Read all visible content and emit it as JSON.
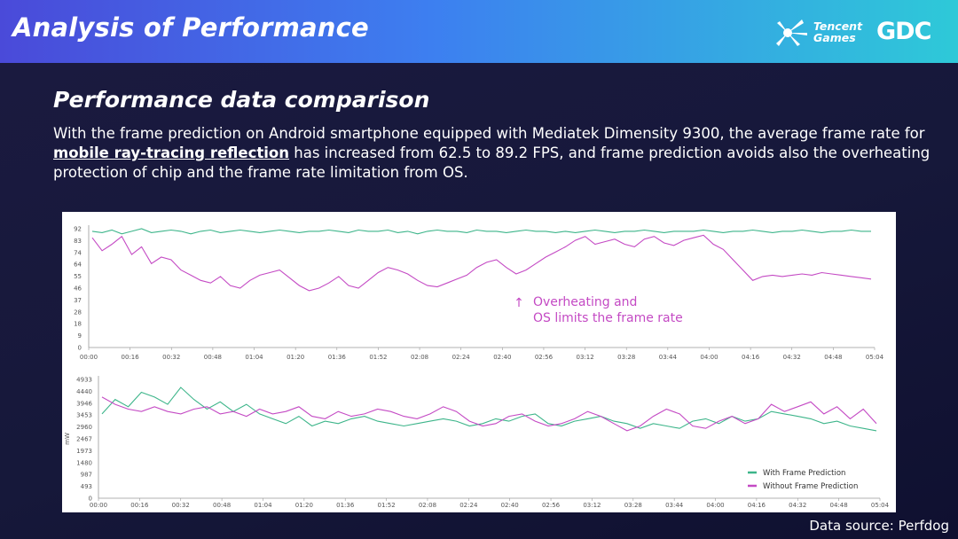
{
  "header": {
    "title": "Analysis of Performance",
    "logo_tencent": "Tencent Games",
    "logo_tencent_line1": "Tencent",
    "logo_tencent_line2": "Games",
    "logo_gdc": "GDC"
  },
  "section": {
    "title": "Performance data comparison",
    "text_before": "With the frame prediction on Android smartphone equipped with Mediatek Dimensity 9300, the average frame rate for ",
    "text_highlight": "mobile ray-tracing reflection",
    "text_after": " has increased from 62.5 to 89.2 FPS, and frame prediction avoids also the overheating protection of chip and the frame rate limitation from OS."
  },
  "source": "Data source: Perfdog",
  "colors": {
    "with_prediction": "#3db58a",
    "without_prediction": "#c44ac4",
    "header_start": "#4a4ad9",
    "header_end": "#2ec9d8"
  },
  "chart_data": [
    {
      "type": "line",
      "title": "",
      "xlabel": "",
      "ylabel": "",
      "ylim": [
        0,
        92
      ],
      "yticks": [
        "92",
        "83",
        "74",
        "64",
        "55",
        "46",
        "37",
        "28",
        "18",
        "9",
        "0"
      ],
      "xticks": [
        "00:00",
        "00:16",
        "00:32",
        "00:48",
        "01:04",
        "01:20",
        "01:36",
        "01:52",
        "02:08",
        "02:24",
        "02:40",
        "02:56",
        "03:12",
        "03:28",
        "03:44",
        "04:00",
        "04:16",
        "04:32",
        "04:48",
        "05:04"
      ],
      "annotation_line1": "Overheating and",
      "annotation_line2": "OS limits the frame rate",
      "annotation_arrow": "↑",
      "series": [
        {
          "name": "With Frame Prediction",
          "color": "#3db58a",
          "values": [
            90,
            89,
            91,
            88,
            90,
            92,
            89,
            90,
            91,
            90,
            88,
            90,
            91,
            89,
            90,
            91,
            90,
            89,
            90,
            91,
            90,
            89,
            90,
            90,
            91,
            90,
            89,
            91,
            90,
            90,
            91,
            89,
            90,
            88,
            90,
            91,
            90,
            90,
            89,
            91,
            90,
            90,
            89,
            90,
            91,
            90,
            90,
            89,
            90,
            89,
            90,
            91,
            90,
            89,
            90,
            90,
            91,
            90,
            89,
            90,
            90,
            90,
            91,
            90,
            89,
            90,
            90,
            91,
            90,
            89,
            90,
            90,
            91,
            90,
            89,
            90,
            90,
            91,
            90,
            90
          ]
        },
        {
          "values": [
            85,
            75,
            80,
            86,
            72,
            78,
            65,
            70,
            68,
            60,
            56,
            52,
            50,
            55,
            48,
            46,
            52,
            56,
            58,
            60,
            54,
            48,
            44,
            46,
            50,
            55,
            48,
            46,
            52,
            58,
            62,
            60,
            57,
            52,
            48,
            47,
            50,
            53,
            56,
            62,
            66,
            68,
            62,
            57,
            60,
            65,
            70,
            74,
            78,
            83,
            86,
            80,
            82,
            84,
            80,
            78,
            84,
            86,
            81,
            79,
            83,
            85,
            87,
            80,
            76,
            68,
            60,
            52,
            55,
            56,
            55,
            56,
            57,
            56,
            58,
            57,
            56,
            55,
            54,
            53
          ]
        }
      ]
    },
    {
      "type": "line",
      "title": "",
      "xlabel": "",
      "ylabel": "mW",
      "ylim": [
        0,
        4933
      ],
      "yticks": [
        "4933",
        "4440",
        "3946",
        "3453",
        "2960",
        "2467",
        "1973",
        "1480",
        "987",
        "493",
        "0"
      ],
      "xticks": [
        "00:00",
        "00:16",
        "00:32",
        "00:48",
        "01:04",
        "01:20",
        "01:36",
        "01:52",
        "02:08",
        "02:24",
        "02:40",
        "02:56",
        "03:12",
        "03:28",
        "03:44",
        "04:00",
        "04:16",
        "04:32",
        "04:48",
        "05:04"
      ],
      "legend_position": "bottom-right",
      "series": [
        {
          "name": "With Frame Prediction",
          "color": "#3db58a",
          "values": [
            3500,
            4100,
            3800,
            4400,
            4200,
            3900,
            4600,
            4100,
            3700,
            4000,
            3600,
            3900,
            3500,
            3300,
            3100,
            3400,
            3000,
            3200,
            3100,
            3300,
            3400,
            3200,
            3100,
            3000,
            3100,
            3200,
            3300,
            3200,
            3000,
            3100,
            3300,
            3200,
            3400,
            3500,
            3100,
            3000,
            3200,
            3300,
            3400,
            3200,
            3100,
            2900,
            3100,
            3000,
            2900,
            3200,
            3300,
            3100,
            3400,
            3200,
            3300,
            3600,
            3500,
            3400,
            3300,
            3100,
            3200,
            3000,
            2900,
            2800
          ]
        },
        {
          "name": "Without Frame Prediction",
          "color": "#c44ac4",
          "values": [
            4200,
            3900,
            3700,
            3600,
            3800,
            3600,
            3500,
            3700,
            3800,
            3500,
            3600,
            3400,
            3700,
            3500,
            3600,
            3800,
            3400,
            3300,
            3600,
            3400,
            3500,
            3700,
            3600,
            3400,
            3300,
            3500,
            3800,
            3600,
            3200,
            3000,
            3100,
            3400,
            3500,
            3200,
            3000,
            3100,
            3300,
            3600,
            3400,
            3100,
            2800,
            3000,
            3400,
            3700,
            3500,
            3000,
            2900,
            3200,
            3400,
            3100,
            3300,
            3900,
            3600,
            3800,
            4000,
            3500,
            3800,
            3300,
            3700,
            3100
          ]
        }
      ]
    }
  ]
}
